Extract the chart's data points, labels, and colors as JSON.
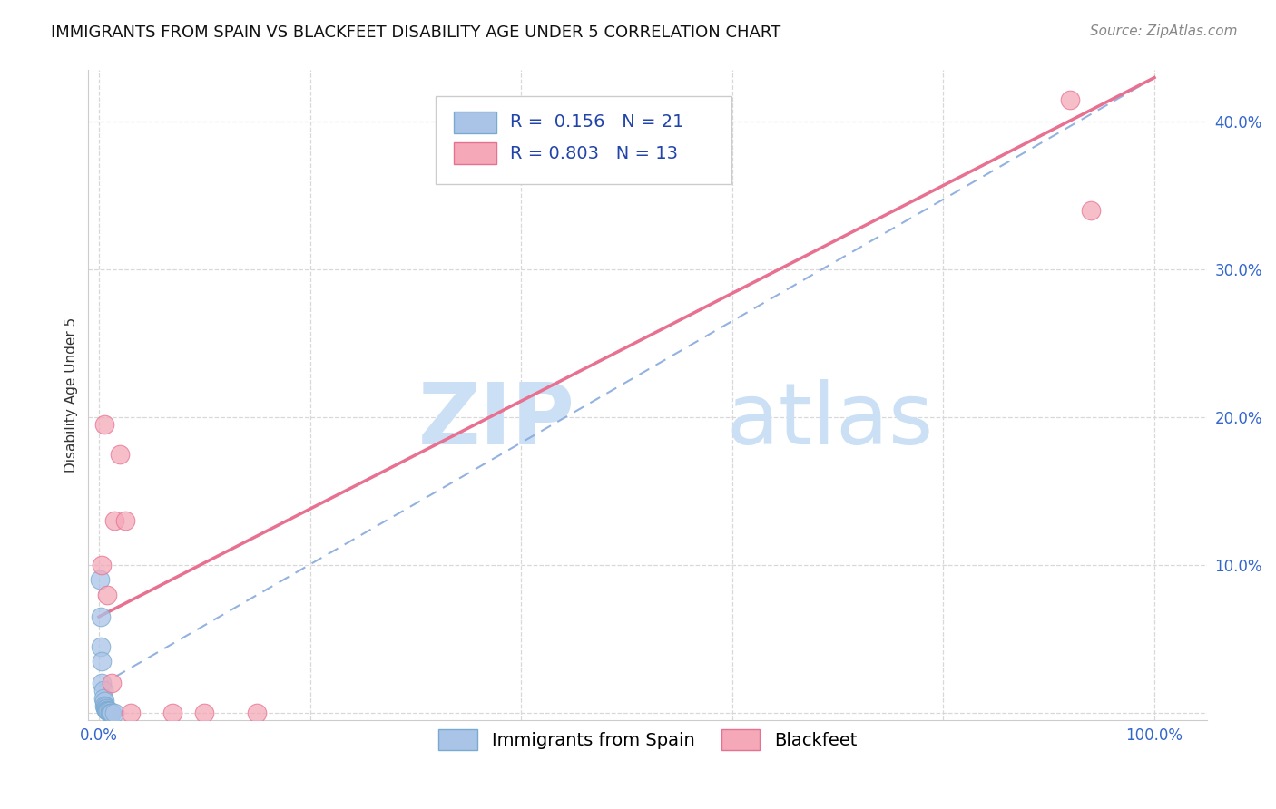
{
  "title": "IMMIGRANTS FROM SPAIN VS BLACKFEET DISABILITY AGE UNDER 5 CORRELATION CHART",
  "source_text": "Source: ZipAtlas.com",
  "ylabel": "Disability Age Under 5",
  "xlim": [
    -0.01,
    1.05
  ],
  "ylim": [
    -0.005,
    0.435
  ],
  "x_ticks": [
    0.0,
    0.2,
    0.4,
    0.6,
    0.8,
    1.0
  ],
  "x_tick_labels": [
    "0.0%",
    "",
    "",
    "",
    "",
    "100.0%"
  ],
  "y_ticks": [
    0.0,
    0.1,
    0.2,
    0.3,
    0.4
  ],
  "y_tick_labels": [
    "",
    "10.0%",
    "20.0%",
    "30.0%",
    "40.0%"
  ],
  "blue_label": "Immigrants from Spain",
  "pink_label": "Blackfeet",
  "blue_color": "#aac4e8",
  "pink_color": "#f4a8b8",
  "blue_edge": "#7aaad0",
  "pink_edge": "#e87090",
  "blue_R": 0.156,
  "blue_N": 21,
  "pink_R": 0.803,
  "pink_N": 13,
  "blue_scatter_x": [
    0.001,
    0.002,
    0.002,
    0.003,
    0.003,
    0.004,
    0.004,
    0.005,
    0.005,
    0.006,
    0.006,
    0.007,
    0.007,
    0.008,
    0.008,
    0.009,
    0.01,
    0.01,
    0.011,
    0.012,
    0.015
  ],
  "blue_scatter_y": [
    0.09,
    0.065,
    0.045,
    0.035,
    0.02,
    0.015,
    0.01,
    0.008,
    0.005,
    0.004,
    0.003,
    0.003,
    0.002,
    0.002,
    0.001,
    0.001,
    0.001,
    0.0,
    0.0,
    0.0,
    0.0
  ],
  "pink_scatter_x": [
    0.003,
    0.005,
    0.008,
    0.012,
    0.015,
    0.02,
    0.025,
    0.03,
    0.07,
    0.1,
    0.92,
    0.94,
    0.15
  ],
  "pink_scatter_y": [
    0.1,
    0.195,
    0.08,
    0.02,
    0.13,
    0.175,
    0.13,
    0.0,
    0.0,
    0.0,
    0.415,
    0.34,
    0.0
  ],
  "blue_line_x0": 0.0,
  "blue_line_y0": 0.018,
  "blue_line_x1": 1.0,
  "blue_line_y1": 0.43,
  "pink_line_x0": 0.0,
  "pink_line_y0": 0.065,
  "pink_line_x1": 1.0,
  "pink_line_y1": 0.43,
  "watermark_zip": "ZIP",
  "watermark_atlas": "atlas",
  "background_color": "#ffffff",
  "grid_color": "#d8d8d8",
  "title_fontsize": 13,
  "axis_label_fontsize": 11,
  "tick_fontsize": 12,
  "legend_fontsize": 14,
  "source_fontsize": 11
}
